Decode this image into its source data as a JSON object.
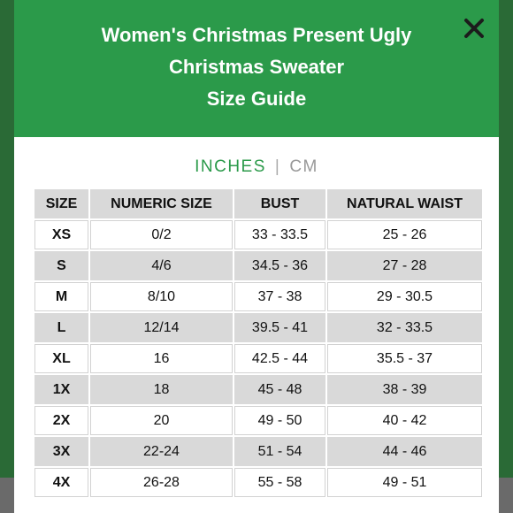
{
  "modal": {
    "title_lines": [
      "Women's Christmas Present Ugly",
      "Christmas Sweater",
      "Size Guide"
    ],
    "close_icon": "close-icon"
  },
  "units": {
    "active": "INCHES",
    "separator": "|",
    "inactive": "CM"
  },
  "table": {
    "headers": [
      "SIZE",
      "NUMERIC SIZE",
      "BUST",
      "NATURAL WAIST"
    ],
    "rows": [
      [
        "XS",
        "0/2",
        "33 - 33.5",
        "25 - 26"
      ],
      [
        "S",
        "4/6",
        "34.5 - 36",
        "27 - 28"
      ],
      [
        "M",
        "8/10",
        "37 - 38",
        "29 - 30.5"
      ],
      [
        "L",
        "12/14",
        "39.5 - 41",
        "32 - 33.5"
      ],
      [
        "XL",
        "16",
        "42.5 - 44",
        "35.5 - 37"
      ],
      [
        "1X",
        "18",
        "45 - 48",
        "38 - 39"
      ],
      [
        "2X",
        "20",
        "49 - 50",
        "40 - 42"
      ],
      [
        "3X",
        "22-24",
        "51 - 54",
        "44 - 46"
      ],
      [
        "4X",
        "26-28",
        "55 - 58",
        "49 - 51"
      ]
    ]
  },
  "colors": {
    "header_green": "#2b9a4a",
    "active_unit": "#2b9a4a",
    "shaded_row": "#d9d9d9"
  }
}
